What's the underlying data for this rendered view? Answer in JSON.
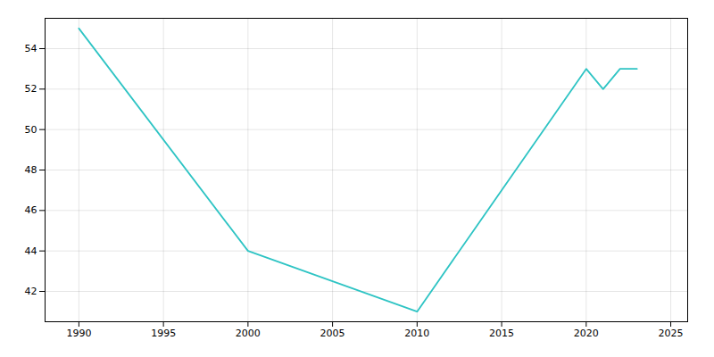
{
  "chart_data": {
    "type": "line",
    "x": [
      1990,
      2000,
      2010,
      2020,
      2021,
      2022,
      2023
    ],
    "values": [
      55,
      44,
      41,
      53,
      52,
      53,
      53
    ],
    "color": "#2ec4c4",
    "xlim": [
      1988,
      2026
    ],
    "ylim": [
      40.5,
      55.5
    ],
    "xticks": [
      1990,
      1995,
      2000,
      2005,
      2010,
      2015,
      2020,
      2025
    ],
    "yticks": [
      42,
      44,
      46,
      48,
      50,
      52,
      54
    ],
    "grid": true
  }
}
